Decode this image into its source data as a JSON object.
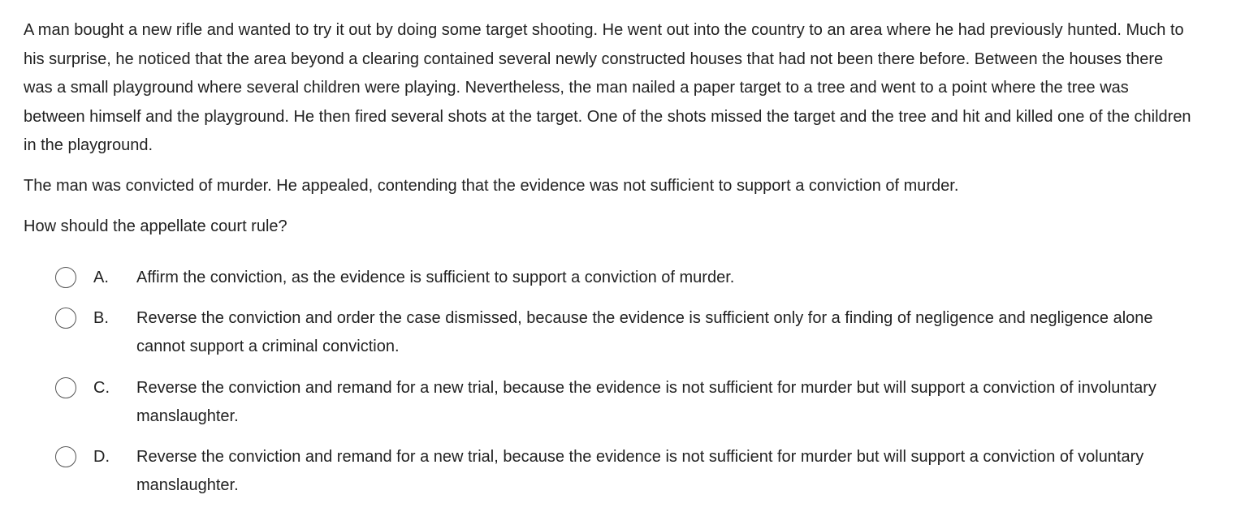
{
  "question": {
    "stem_paragraphs": [
      "A man bought a new rifle and wanted to try it out by doing some target shooting.  He went out into the country to an area where he had previously hunted.  Much to his surprise, he noticed that the area beyond a clearing contained several newly constructed houses that had not been there before.  Between the houses there was a small playground where several children were playing.  Nevertheless, the man nailed a paper target to a tree and went to a point where the tree was between himself and the playground.  He then fired several shots at the target.  One of the shots missed the target and the tree and hit and killed one of the children in the playground.",
      "The man was convicted of murder.  He appealed, contending that the evidence was not sufficient to support a conviction of murder.",
      "How should the appellate court rule?"
    ],
    "options": [
      {
        "letter": "A.",
        "text": "Affirm the conviction, as the evidence is sufficient to support a conviction of murder.",
        "selected": false
      },
      {
        "letter": "B.",
        "text": "Reverse the conviction and order the case dismissed, because the evidence is sufficient only for a finding of negligence and negligence alone cannot support a criminal conviction.",
        "selected": false
      },
      {
        "letter": "C.",
        "text": "Reverse the conviction and remand for a new trial, because the evidence is not sufficient for murder but will support a conviction of involuntary manslaughter.",
        "selected": false
      },
      {
        "letter": "D.",
        "text": "Reverse the conviction and remand for a new trial, because the evidence is not sufficient for murder but will support a conviction of voluntary manslaughter.",
        "selected": false
      }
    ]
  },
  "colors": {
    "text": "#222222",
    "radio_border": "#555555",
    "background": "#ffffff"
  }
}
